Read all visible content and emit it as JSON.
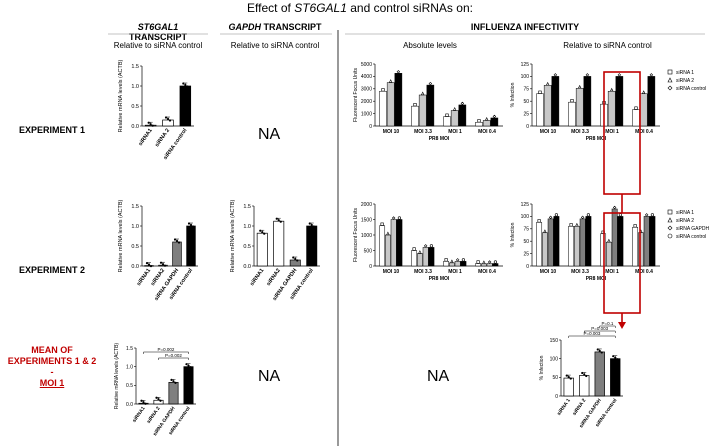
{
  "title": {
    "prefix": "Effect of ",
    "gene": "ST6GAL1",
    "suffix": " and control siRNAs on:"
  },
  "columns": {
    "st6": {
      "gene": "ST6GAL1",
      "suffix": " TRANSCRIPT",
      "sub": "Relative to siRNA control"
    },
    "gapdh": {
      "gene": "GAPDH",
      "suffix": " TRANSCRIPT",
      "sub": "Relative to siRNA control"
    },
    "flu": {
      "label": "INFLUENZA INFECTIVITY",
      "sub_abs": "Absolute levels",
      "sub_rel": "Relative to siRNA control"
    }
  },
  "rows": {
    "exp1": "EXPERIMENT 1",
    "exp2": "EXPERIMENT 2",
    "mean": {
      "line1": "MEAN OF",
      "line2": "EXPERIMENTS 1 & 2",
      "line3": "-",
      "line4": "MOI 1"
    }
  },
  "na_text": "NA",
  "colors": {
    "accent_red": "#c00000",
    "white_bar": "#ffffff",
    "grey_bar": "#7f7f7f",
    "light_grey_bar": "#c8c8c8",
    "black_bar": "#000000"
  },
  "chart_data": [
    {
      "id": "st6_exp1",
      "type": "bar",
      "ylabel": "Relative mRNA levels (ACTB)",
      "ylim": [
        0,
        1.5
      ],
      "yticks": [
        "0.0",
        "0.5",
        "1.0",
        "1.5"
      ],
      "categories": [
        "siRNA1",
        "siRNA 2",
        "siRNA control"
      ],
      "values": [
        0.02,
        0.15,
        1.0
      ],
      "fills": [
        "white",
        "white",
        "black"
      ]
    },
    {
      "id": "st6_exp2",
      "type": "bar",
      "ylabel": "Relative mRNA levels (ACTB)",
      "ylim": [
        0,
        1.5
      ],
      "yticks": [
        "0.0",
        "0.5",
        "1.0",
        "1.5"
      ],
      "categories": [
        "siRNA1",
        "siRNA2",
        "siRNA GAPDH",
        "siRNA control"
      ],
      "values": [
        0.01,
        0.02,
        0.6,
        1.0
      ],
      "fills": [
        "white",
        "white",
        "grey",
        "black"
      ]
    },
    {
      "id": "gapdh_exp2",
      "type": "bar",
      "ylabel": "Relative mRNA levels (ACTB)",
      "ylim": [
        0,
        1.5
      ],
      "yticks": [
        "0.0",
        "0.5",
        "1.0",
        "1.5"
      ],
      "categories": [
        "siRNA1",
        "siRNA2",
        "siRNA GAPDH",
        "siRNA control"
      ],
      "values": [
        0.82,
        1.12,
        0.15,
        1.0
      ],
      "fills": [
        "white",
        "white",
        "grey",
        "black"
      ]
    },
    {
      "id": "st6_mean",
      "type": "bar",
      "ylabel": "Relative mRNA levels (ACTB)",
      "ylim": [
        0,
        1.5
      ],
      "yticks": [
        "0.0",
        "0.5",
        "1.0",
        "1.5"
      ],
      "categories": [
        "siRNA1",
        "siRNA 2",
        "siRNA GAPDH",
        "siRNA control"
      ],
      "values": [
        0.02,
        0.1,
        0.58,
        1.0
      ],
      "fills": [
        "white",
        "white",
        "grey",
        "black"
      ],
      "annotations": [
        {
          "text": "P=0.002",
          "from": 1,
          "to": 3
        },
        {
          "text": "P=0.002",
          "from": 0,
          "to": 3
        }
      ]
    },
    {
      "id": "flu_abs_exp1",
      "type": "bar",
      "ylabel": "Fluorescent Focus Units",
      "xlabel": "PR8 MOI",
      "ylim": [
        0,
        5000
      ],
      "yticks": [
        "0",
        "1000",
        "2000",
        "3000",
        "4000",
        "5000"
      ],
      "groups": [
        "MOI 10",
        "MOI 3.3",
        "MOI 1",
        "MOI 0.4"
      ],
      "series": [
        {
          "values": [
            2800,
            1600,
            750,
            300
          ]
        },
        {
          "values": [
            3500,
            2500,
            1250,
            450
          ]
        },
        {
          "values": [
            4250,
            3300,
            1700,
            650
          ]
        }
      ]
    },
    {
      "id": "flu_rel_exp1",
      "type": "bar",
      "ylabel": "% Infection",
      "xlabel": "PR8 MOI",
      "ylim": [
        0,
        125
      ],
      "yticks": [
        "0",
        "25",
        "50",
        "75",
        "100",
        "125"
      ],
      "groups": [
        "MOI 10",
        "MOI 3.3",
        "MOI 1",
        "MOI 0.4"
      ],
      "series": [
        {
          "name": "siRNA 1",
          "values": [
            65,
            48,
            44,
            33
          ]
        },
        {
          "name": "siRNA 2",
          "values": [
            82,
            76,
            70,
            65
          ]
        },
        {
          "name": "siRNA control",
          "values": [
            100,
            100,
            100,
            100
          ]
        }
      ]
    },
    {
      "id": "flu_abs_exp2",
      "type": "bar",
      "ylabel": "Fluorescent Focus Units",
      "xlabel": "PR8 MOI",
      "ylim": [
        0,
        2000
      ],
      "yticks": [
        "0",
        "500",
        "1000",
        "1500",
        "2000"
      ],
      "groups": [
        "MOI 10",
        "MOI 3.3",
        "MOI 1",
        "MOI 0.4"
      ],
      "series": [
        {
          "values": [
            1300,
            500,
            150,
            80
          ]
        },
        {
          "values": [
            1000,
            400,
            100,
            70
          ]
        },
        {
          "values": [
            1500,
            600,
            150,
            80
          ]
        },
        {
          "values": [
            1500,
            600,
            150,
            80
          ]
        }
      ]
    },
    {
      "id": "flu_rel_exp2",
      "type": "bar",
      "ylabel": "% Infection",
      "xlabel": "PR8 MOI",
      "ylim": [
        0,
        125
      ],
      "yticks": [
        "0",
        "25",
        "50",
        "75",
        "100",
        "125"
      ],
      "groups": [
        "MOI 10",
        "MOI 3.3",
        "MOI 1",
        "MOI 0.4"
      ],
      "series": [
        {
          "name": "siRNA 1",
          "values": [
            88,
            80,
            65,
            78
          ]
        },
        {
          "name": "siRNA 2",
          "values": [
            67,
            80,
            48,
            67
          ]
        },
        {
          "name": "siRNA GAPDH",
          "values": [
            95,
            95,
            115,
            100
          ]
        },
        {
          "name": "siRNA control",
          "values": [
            100,
            100,
            100,
            100
          ]
        }
      ]
    },
    {
      "id": "flu_mean",
      "type": "bar",
      "ylabel": "% Infection",
      "ylim": [
        0,
        150
      ],
      "yticks": [
        "0",
        "50",
        "100",
        "150"
      ],
      "categories": [
        "siRNA 1",
        "siRNA 2",
        "siRNA GAPDH",
        "siRNA control"
      ],
      "values": [
        48,
        55,
        118,
        100
      ],
      "fills": [
        "white",
        "white",
        "grey",
        "black"
      ],
      "annotations": [
        {
          "text": "P=0.003",
          "from": 0,
          "to": 3
        },
        {
          "text": "P=0.003",
          "from": 1,
          "to": 3
        },
        {
          "text": "P=0.1",
          "from": 2,
          "to": 3
        }
      ]
    }
  ]
}
